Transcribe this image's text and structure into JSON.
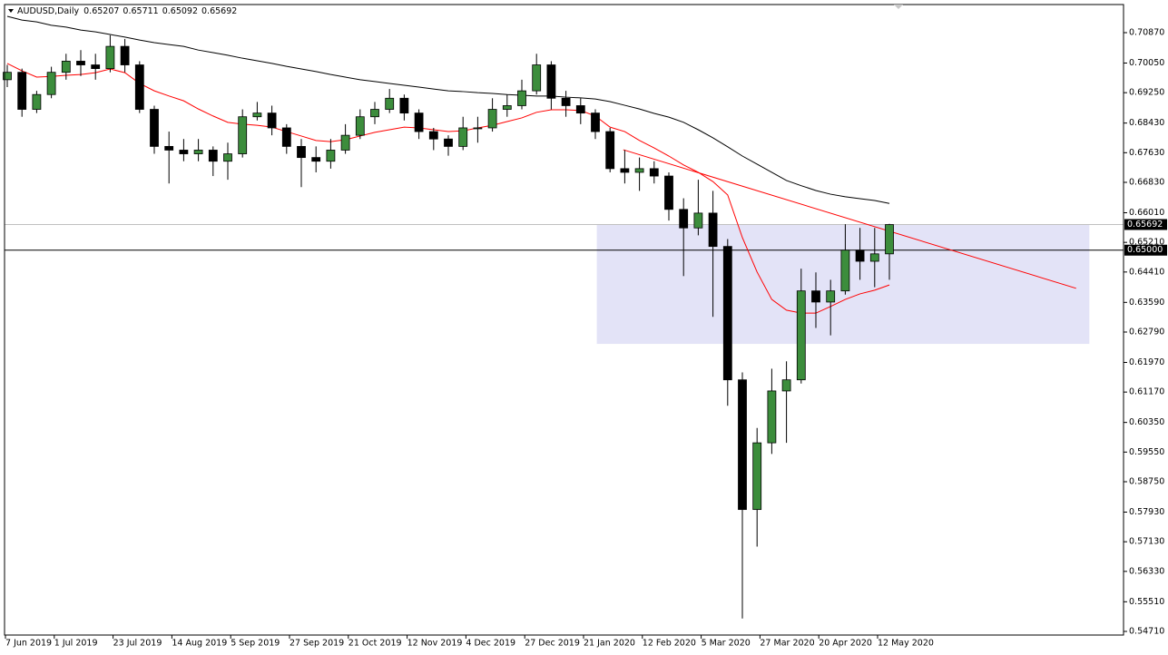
{
  "chart_data": {
    "type": "candlestick",
    "header": {
      "symbol": "AUDUSD,Daily",
      "ohlc": [
        0.65207,
        0.65711,
        0.65092,
        0.65692
      ]
    },
    "categories": [
      "7 Jun 2019",
      null,
      null,
      null,
      "1 Jul 2019",
      null,
      null,
      null,
      "23 Jul 2019",
      null,
      null,
      null,
      "14 Aug 2019",
      null,
      null,
      null,
      "5 Sep 2019",
      null,
      null,
      null,
      "27 Sep 2019",
      null,
      null,
      null,
      "21 Oct 2019",
      null,
      null,
      null,
      "12 Nov 2019",
      null,
      null,
      null,
      "4 Dec 2019",
      null,
      null,
      null,
      "27 Dec 2019",
      null,
      null,
      null,
      "21 Jan 2020",
      null,
      null,
      null,
      "12 Feb 2020",
      null,
      null,
      null,
      "5 Mar 2020",
      null,
      null,
      null,
      "27 Mar 2020",
      null,
      null,
      null,
      "20 Apr 2020",
      null,
      null,
      null,
      "12 May 2020"
    ],
    "ohlc": [
      [
        0.696,
        0.7,
        0.694,
        0.698
      ],
      [
        0.698,
        0.699,
        0.686,
        0.688
      ],
      [
        0.688,
        0.693,
        0.687,
        0.692
      ],
      [
        0.692,
        0.6995,
        0.691,
        0.698
      ],
      [
        0.698,
        0.703,
        0.696,
        0.701
      ],
      [
        0.701,
        0.704,
        0.697,
        0.7
      ],
      [
        0.7,
        0.703,
        0.696,
        0.699
      ],
      [
        0.699,
        0.708,
        0.698,
        0.705
      ],
      [
        0.705,
        0.707,
        0.698,
        0.7
      ],
      [
        0.7,
        0.701,
        0.687,
        0.688
      ],
      [
        0.688,
        0.689,
        0.676,
        0.678
      ],
      [
        0.678,
        0.682,
        0.668,
        0.677
      ],
      [
        0.677,
        0.68,
        0.674,
        0.676
      ],
      [
        0.676,
        0.68,
        0.674,
        0.677
      ],
      [
        0.677,
        0.678,
        0.67,
        0.674
      ],
      [
        0.674,
        0.679,
        0.669,
        0.676
      ],
      [
        0.676,
        0.688,
        0.675,
        0.686
      ],
      [
        0.686,
        0.69,
        0.685,
        0.687
      ],
      [
        0.687,
        0.689,
        0.681,
        0.683
      ],
      [
        0.683,
        0.684,
        0.676,
        0.678
      ],
      [
        0.678,
        0.68,
        0.667,
        0.675
      ],
      [
        0.675,
        0.678,
        0.671,
        0.674
      ],
      [
        0.674,
        0.68,
        0.672,
        0.677
      ],
      [
        0.677,
        0.684,
        0.676,
        0.681
      ],
      [
        0.681,
        0.688,
        0.68,
        0.686
      ],
      [
        0.686,
        0.69,
        0.684,
        0.688
      ],
      [
        0.688,
        0.6935,
        0.687,
        0.691
      ],
      [
        0.691,
        0.692,
        0.685,
        0.687
      ],
      [
        0.687,
        0.688,
        0.68,
        0.682
      ],
      [
        0.682,
        0.683,
        0.677,
        0.68
      ],
      [
        0.68,
        0.681,
        0.6755,
        0.678
      ],
      [
        0.678,
        0.686,
        0.677,
        0.683
      ],
      [
        0.683,
        0.686,
        0.679,
        0.683
      ],
      [
        0.683,
        0.691,
        0.682,
        0.688
      ],
      [
        0.688,
        0.692,
        0.686,
        0.689
      ],
      [
        0.689,
        0.696,
        0.688,
        0.693
      ],
      [
        0.693,
        0.703,
        0.692,
        0.7
      ],
      [
        0.7,
        0.701,
        0.688,
        0.691
      ],
      [
        0.691,
        0.693,
        0.686,
        0.689
      ],
      [
        0.689,
        0.691,
        0.684,
        0.687
      ],
      [
        0.687,
        0.688,
        0.68,
        0.682
      ],
      [
        0.682,
        0.683,
        0.671,
        0.672
      ],
      [
        0.672,
        0.677,
        0.668,
        0.671
      ],
      [
        0.671,
        0.675,
        0.666,
        0.672
      ],
      [
        0.672,
        0.674,
        0.668,
        0.67
      ],
      [
        0.67,
        0.671,
        0.658,
        0.661
      ],
      [
        0.661,
        0.664,
        0.643,
        0.656
      ],
      [
        0.656,
        0.669,
        0.654,
        0.66
      ],
      [
        0.66,
        0.666,
        0.632,
        0.651
      ],
      [
        0.651,
        0.653,
        0.608,
        0.615
      ],
      [
        0.615,
        0.617,
        0.5506,
        0.58
      ],
      [
        0.58,
        0.602,
        0.57,
        0.598
      ],
      [
        0.598,
        0.618,
        0.595,
        0.612
      ],
      [
        0.612,
        0.62,
        0.598,
        0.615
      ],
      [
        0.615,
        0.645,
        0.614,
        0.639
      ],
      [
        0.639,
        0.644,
        0.629,
        0.636
      ],
      [
        0.636,
        0.642,
        0.627,
        0.639
      ],
      [
        0.639,
        0.657,
        0.638,
        0.65
      ],
      [
        0.65,
        0.656,
        0.642,
        0.647
      ],
      [
        0.647,
        0.656,
        0.64,
        0.649
      ],
      [
        0.649,
        0.6571,
        0.642,
        0.6569
      ]
    ],
    "up_color": "#3c8d3c",
    "down_color": "#000000",
    "lines": [
      {
        "color": "#ff0000",
        "values": [
          0.7004,
          0.6984,
          0.6967,
          0.6969,
          0.6972,
          0.6974,
          0.6979,
          0.6989,
          0.6979,
          0.695,
          0.693,
          0.6916,
          0.6903,
          0.6881,
          0.6862,
          0.6845,
          0.684,
          0.6837,
          0.6832,
          0.682,
          0.6808,
          0.6796,
          0.6793,
          0.6798,
          0.6808,
          0.6818,
          0.6825,
          0.6832,
          0.683,
          0.6825,
          0.682,
          0.6822,
          0.683,
          0.6837,
          0.6847,
          0.6857,
          0.6872,
          0.6879,
          0.6879,
          0.6877,
          0.6862,
          0.6832,
          0.682,
          0.6796,
          0.6776,
          0.6754,
          0.673,
          0.671,
          0.6685,
          0.6649,
          0.6534,
          0.6441,
          0.6367,
          0.6338,
          0.633,
          0.633,
          0.6348,
          0.6367,
          0.6382,
          0.6392,
          0.6406
        ]
      },
      {
        "color": "#000000",
        "values": [
          0.7131,
          0.7121,
          0.7116,
          0.7107,
          0.7102,
          0.7094,
          0.7089,
          0.7082,
          0.7075,
          0.7067,
          0.706,
          0.7055,
          0.705,
          0.704,
          0.7033,
          0.7026,
          0.7018,
          0.7011,
          0.7004,
          0.6996,
          0.6989,
          0.6982,
          0.6974,
          0.6967,
          0.696,
          0.6955,
          0.695,
          0.6945,
          0.694,
          0.6935,
          0.693,
          0.6928,
          0.6925,
          0.6923,
          0.692,
          0.6918,
          0.6916,
          0.6916,
          0.6913,
          0.6911,
          0.6908,
          0.6901,
          0.6891,
          0.6881,
          0.6869,
          0.6859,
          0.6845,
          0.6825,
          0.6803,
          0.6779,
          0.6754,
          0.6732,
          0.671,
          0.6688,
          0.6674,
          0.6661,
          0.6651,
          0.6644,
          0.6639,
          0.6634,
          0.6626
        ]
      }
    ],
    "trendline": {
      "color": "#ff0000",
      "x": [
        41.9,
        72.7
      ],
      "values": [
        0.6771,
        0.6397
      ]
    },
    "zone": {
      "color": "#e3e3f7",
      "x": [
        40.1,
        73.6
      ],
      "values": [
        0.6569,
        0.6247
      ]
    },
    "levels": [
      {
        "value": 0.65692,
        "label": "0.65692",
        "color": "#c0c0c0"
      },
      {
        "value": 0.65,
        "label": "0.65000",
        "color": "#000000"
      }
    ],
    "ylim": [
      0.54612,
      0.71629
    ],
    "yticks": [
      {
        "value": 0.7087,
        "label": "0.70870"
      },
      {
        "value": 0.7005,
        "label": "0.70050"
      },
      {
        "value": 0.6925,
        "label": "0.69250"
      },
      {
        "value": 0.6843,
        "label": "0.68430"
      },
      {
        "value": 0.6763,
        "label": "0.67630"
      },
      {
        "value": 0.6683,
        "label": "0.66830"
      },
      {
        "value": 0.6601,
        "label": "0.66010"
      },
      {
        "value": 0.6521,
        "label": "0.65210"
      },
      {
        "value": 0.6441,
        "label": "0.64410"
      },
      {
        "value": 0.6359,
        "label": "0.63590"
      },
      {
        "value": 0.6279,
        "label": "0.62790"
      },
      {
        "value": 0.6197,
        "label": "0.61970"
      },
      {
        "value": 0.6117,
        "label": "0.61170"
      },
      {
        "value": 0.6035,
        "label": "0.60350"
      },
      {
        "value": 0.5955,
        "label": "0.59550"
      },
      {
        "value": 0.5875,
        "label": "0.58750"
      },
      {
        "value": 0.5793,
        "label": "0.57930"
      },
      {
        "value": 0.5713,
        "label": "0.57130"
      },
      {
        "value": 0.5633,
        "label": "0.56330"
      },
      {
        "value": 0.5551,
        "label": "0.55510"
      },
      {
        "value": 0.5471,
        "label": "0.54710"
      }
    ]
  }
}
